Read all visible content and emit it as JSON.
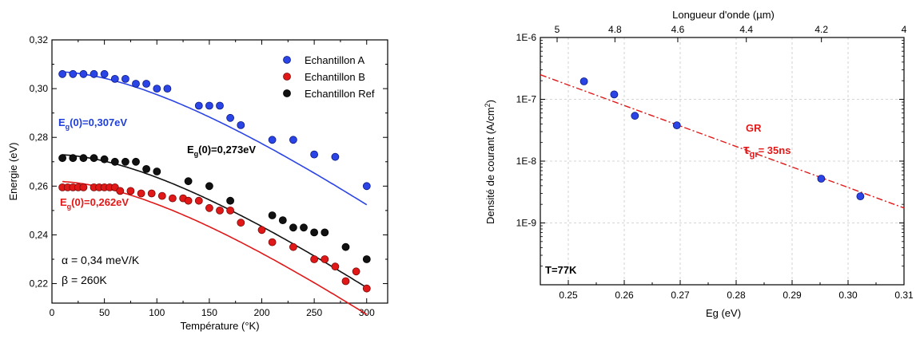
{
  "chart_data": [
    {
      "type": "scatter",
      "xlabel": "Température (°K)",
      "ylabel": "Energie (eV)",
      "xlim": [
        0,
        320
      ],
      "ylim": [
        0.212,
        0.32
      ],
      "x_ticks": [
        0,
        50,
        100,
        150,
        200,
        250,
        300
      ],
      "y_ticks": [
        0.22,
        0.24,
        0.26,
        0.28,
        0.3,
        0.32
      ],
      "y_tick_labels": [
        "0,22",
        "0,24",
        "0,26",
        "0,28",
        "0,30",
        "0,32"
      ],
      "legend_position": "top-right",
      "series": [
        {
          "name": "Echantillon A",
          "color": "#2b44e6",
          "points": [
            [
              10,
              0.306
            ],
            [
              20,
              0.306
            ],
            [
              30,
              0.306
            ],
            [
              40,
              0.306
            ],
            [
              50,
              0.306
            ],
            [
              60,
              0.304
            ],
            [
              70,
              0.304
            ],
            [
              80,
              0.302
            ],
            [
              90,
              0.302
            ],
            [
              100,
              0.3
            ],
            [
              110,
              0.3
            ],
            [
              140,
              0.293
            ],
            [
              150,
              0.293
            ],
            [
              160,
              0.293
            ],
            [
              170,
              0.288
            ],
            [
              180,
              0.285
            ],
            [
              210,
              0.279
            ],
            [
              230,
              0.279
            ],
            [
              250,
              0.273
            ],
            [
              270,
              0.272
            ],
            [
              300,
              0.26
            ]
          ],
          "fit": {
            "Eg0": 0.307,
            "alpha_eV_per_K": 0.00034,
            "beta_K": 260
          }
        },
        {
          "name": "Echantillon B",
          "color": "#e01818",
          "points": [
            [
              10,
              0.2595
            ],
            [
              15,
              0.2595
            ],
            [
              20,
              0.2595
            ],
            [
              25,
              0.2595
            ],
            [
              30,
              0.2595
            ],
            [
              40,
              0.2595
            ],
            [
              45,
              0.2595
            ],
            [
              50,
              0.2595
            ],
            [
              55,
              0.2595
            ],
            [
              60,
              0.2595
            ],
            [
              65,
              0.258
            ],
            [
              75,
              0.258
            ],
            [
              85,
              0.257
            ],
            [
              95,
              0.257
            ],
            [
              105,
              0.256
            ],
            [
              115,
              0.255
            ],
            [
              125,
              0.255
            ],
            [
              130,
              0.254
            ],
            [
              140,
              0.254
            ],
            [
              150,
              0.251
            ],
            [
              160,
              0.25
            ],
            [
              170,
              0.25
            ],
            [
              180,
              0.245
            ],
            [
              200,
              0.242
            ],
            [
              210,
              0.237
            ],
            [
              230,
              0.235
            ],
            [
              250,
              0.23
            ],
            [
              260,
              0.23
            ],
            [
              270,
              0.227
            ],
            [
              280,
              0.221
            ],
            [
              290,
              0.225
            ],
            [
              300,
              0.218
            ]
          ],
          "fit": {
            "Eg0": 0.262,
            "alpha_eV_per_K": 0.00034,
            "beta_K": 260
          }
        },
        {
          "name": "Echantillon Ref",
          "color": "#111111",
          "points": [
            [
              10,
              0.2715
            ],
            [
              20,
              0.2715
            ],
            [
              30,
              0.2715
            ],
            [
              40,
              0.2715
            ],
            [
              50,
              0.271
            ],
            [
              60,
              0.27
            ],
            [
              70,
              0.27
            ],
            [
              80,
              0.27
            ],
            [
              90,
              0.267
            ],
            [
              100,
              0.266
            ],
            [
              130,
              0.262
            ],
            [
              150,
              0.26
            ],
            [
              170,
              0.254
            ],
            [
              210,
              0.248
            ],
            [
              220,
              0.246
            ],
            [
              230,
              0.243
            ],
            [
              240,
              0.243
            ],
            [
              250,
              0.241
            ],
            [
              260,
              0.241
            ],
            [
              280,
              0.235
            ],
            [
              300,
              0.23
            ]
          ],
          "fit": {
            "Eg0": 0.273,
            "alpha_eV_per_K": 0.00034,
            "beta_K": 260
          }
        }
      ],
      "annotations": {
        "eg_a": "E",
        "eg_a_sub": "g",
        "eg_a_val": "(0)=0,307eV",
        "eg_ref": "E",
        "eg_ref_sub": "g",
        "eg_ref_val": "(0)=0,273eV",
        "eg_b": "E",
        "eg_b_sub": "g",
        "eg_b_val": "(0)=0,262eV",
        "alpha": "α = 0,34 meV/K",
        "beta": "β = 260K"
      }
    },
    {
      "type": "scatter",
      "xlabel": "Eg (eV)",
      "ylabel": "Densité de courant (A/cm²)",
      "ylabel_main": "Densité de courant (A/cm",
      "ylabel_sup": "2",
      "ylabel_end": ")",
      "top_xlabel": "Longueur d'onde (µm)",
      "xlim": [
        0.245,
        0.31
      ],
      "ylog": true,
      "ylim": [
        1e-10,
        1e-06
      ],
      "x_ticks": [
        0.25,
        0.26,
        0.27,
        0.28,
        0.29,
        0.3,
        0.31
      ],
      "x_tick_labels": [
        "0.25",
        "0.26",
        "0.27",
        "0.28",
        "0.29",
        "0.30",
        "0.31"
      ],
      "y_ticks": [
        1e-09,
        1e-08,
        1e-07,
        1e-06
      ],
      "y_tick_labels": [
        "1E-9",
        "1E-8",
        "1E-7",
        "1E-6"
      ],
      "top_ticks": [
        5,
        4.8,
        4.6,
        4.4,
        4.2,
        4
      ],
      "top_tick_labels": [
        "5",
        "4.8",
        "4.6",
        "4.4",
        "4.2",
        "4"
      ],
      "grid": true,
      "series": [
        {
          "name": "",
          "color": "#2b44e6",
          "points": [
            [
              0.2528,
              1.95e-07
            ],
            [
              0.2582,
              1.2e-07
            ],
            [
              0.2619,
              5.4e-08
            ],
            [
              0.2694,
              3.8e-08
            ],
            [
              0.2952,
              5.2e-09
            ],
            [
              0.3022,
              2.7e-09
            ]
          ]
        }
      ],
      "fit_line": {
        "color": "#e01818",
        "x": [
          0.245,
          0.31
        ],
        "y": [
          2.5e-07,
          1.75e-09
        ]
      },
      "annotations": {
        "gr": "GR",
        "tau": "τ",
        "tau_sub": "gr",
        "tau_val": "= 35ns",
        "temp": "T=77K"
      }
    }
  ]
}
